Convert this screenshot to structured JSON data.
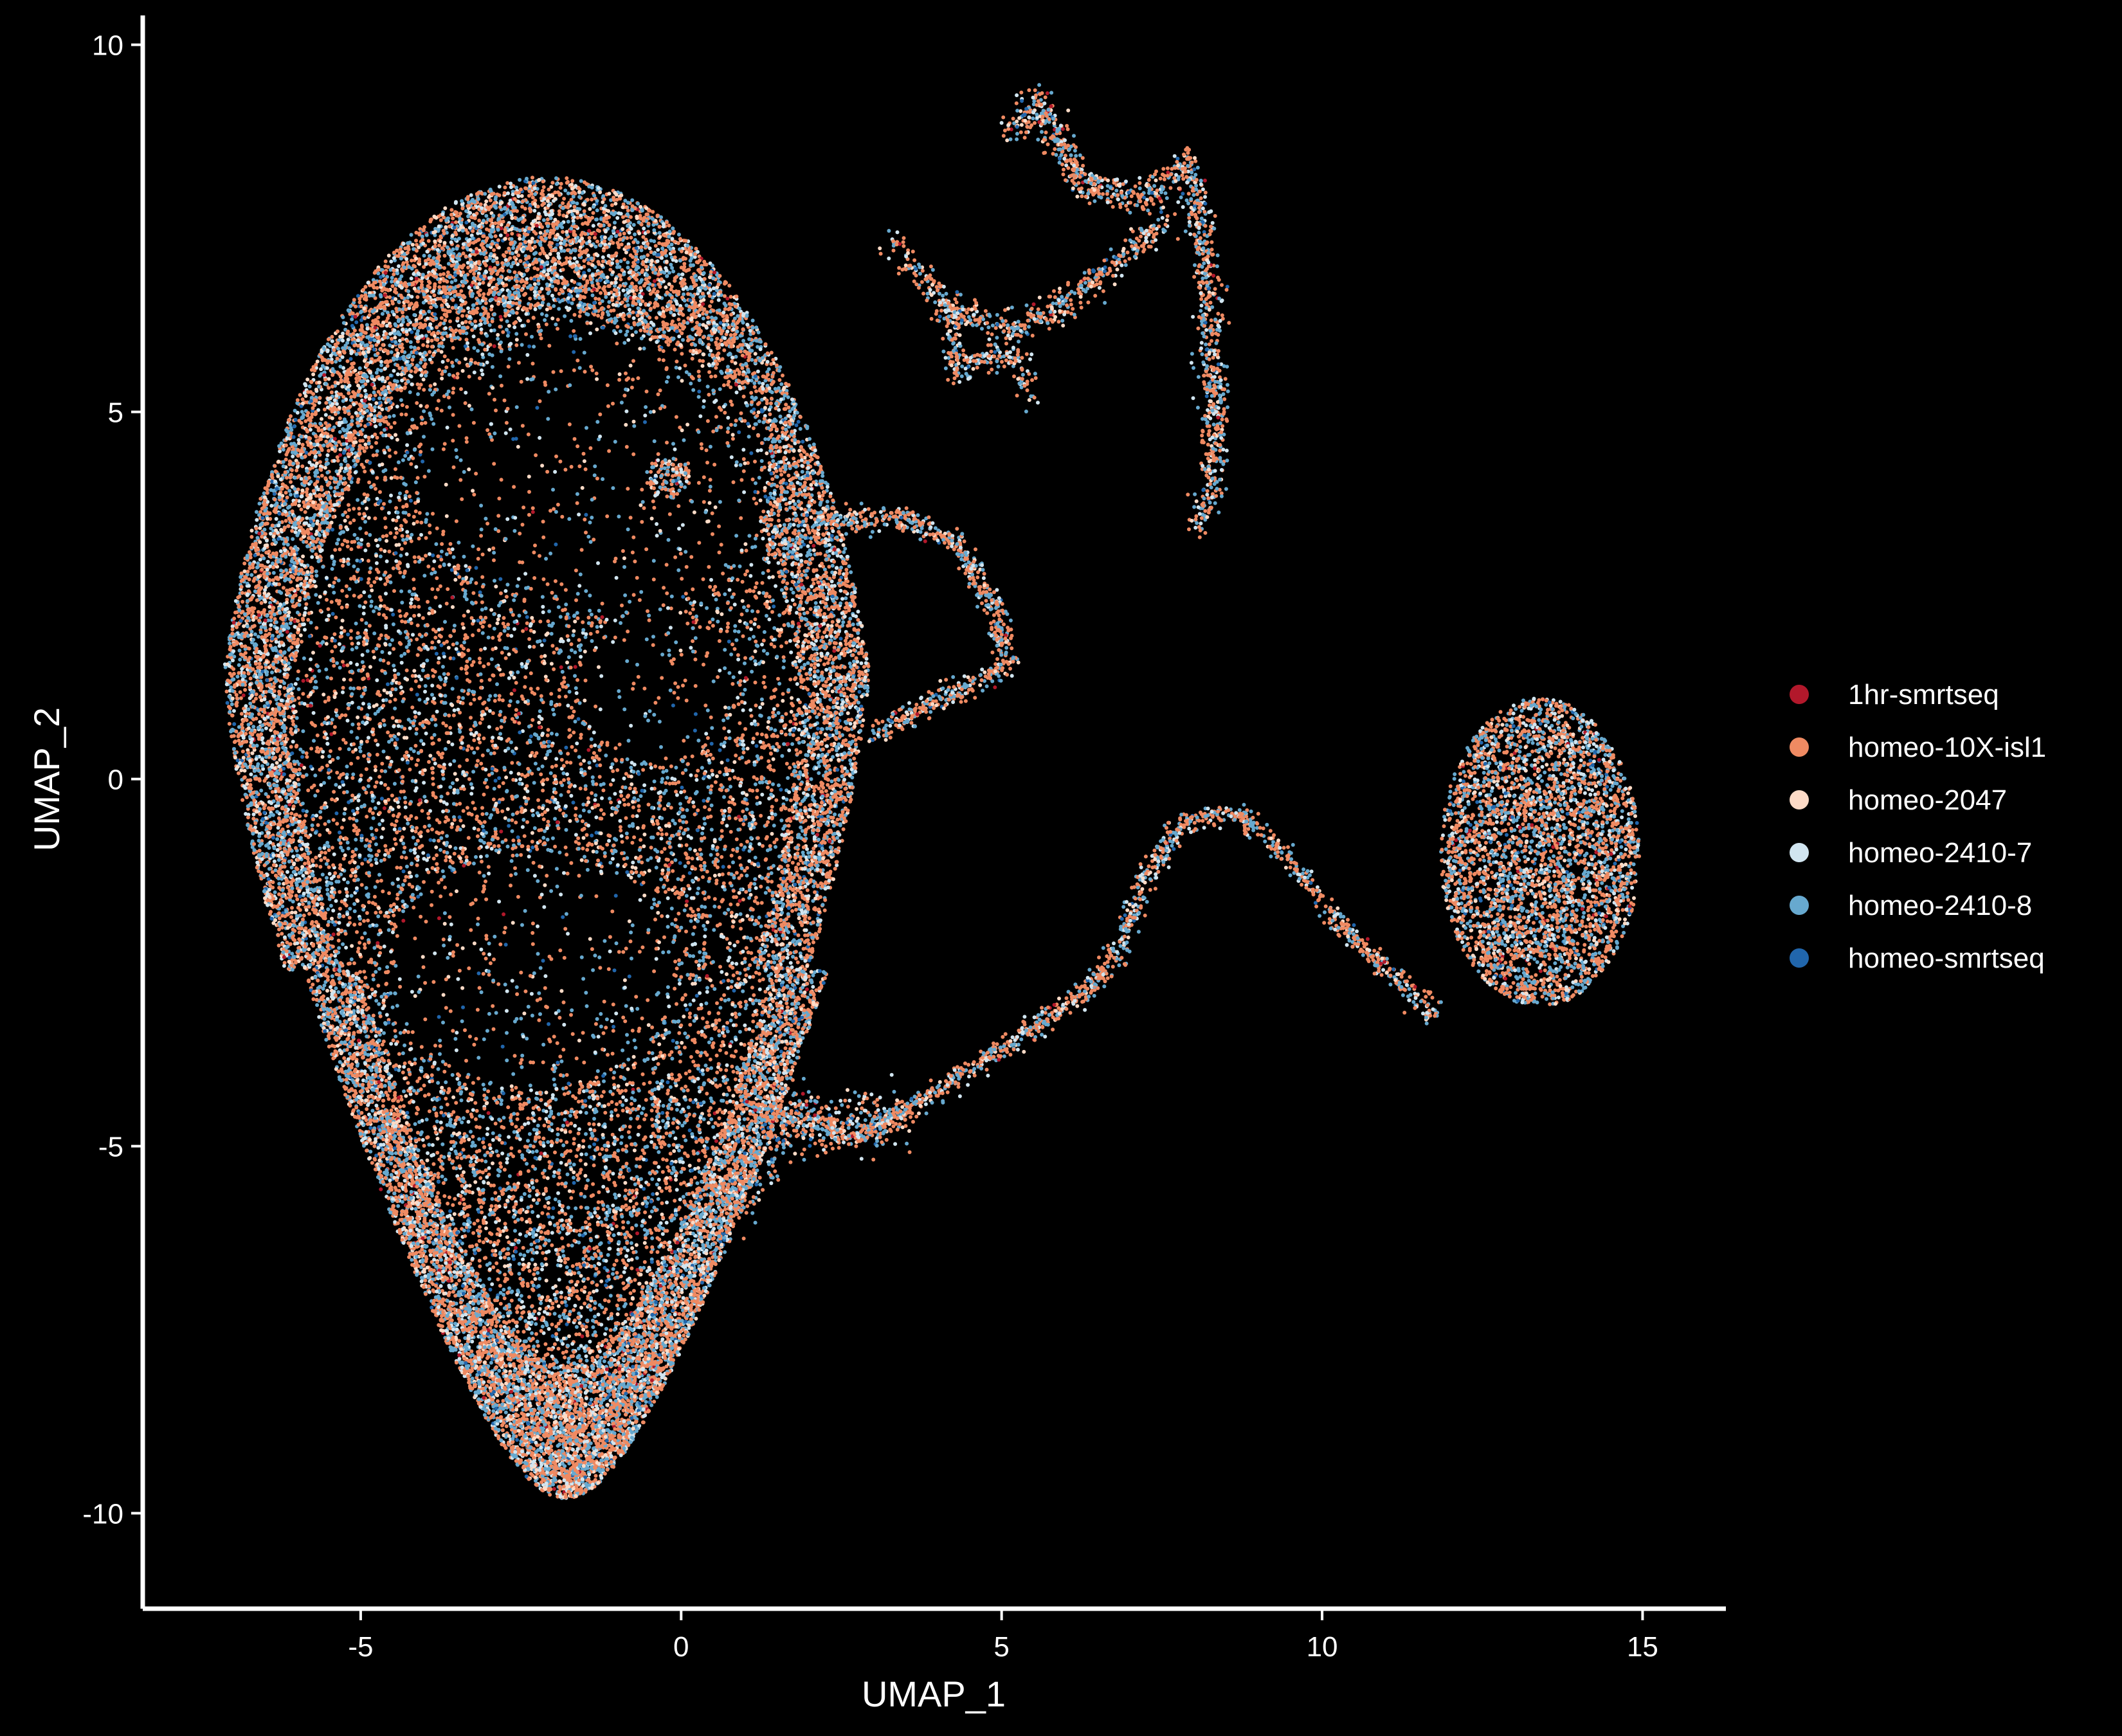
{
  "chart_data": {
    "type": "scatter",
    "title": "",
    "xlabel": "UMAP_1",
    "ylabel": "UMAP_2",
    "xlim": [
      -8.4,
      16.3
    ],
    "ylim": [
      -11.3,
      10.4
    ],
    "x_ticks": [
      -5,
      0,
      5,
      10,
      15
    ],
    "y_ticks": [
      -10,
      -5,
      0,
      5,
      10
    ],
    "x_tick_labels": [
      "-5",
      "0",
      "5",
      "10",
      "15"
    ],
    "y_tick_labels": [
      "-10",
      "-5",
      "0",
      "5",
      "10"
    ],
    "grid": false,
    "background": "#000000",
    "legend_position": "right",
    "series": [
      {
        "name": "1hr-smrtseq",
        "color": "#b2182b",
        "weight": 0.01
      },
      {
        "name": "homeo-10X-isl1",
        "color": "#ef8a62",
        "weight": 0.48
      },
      {
        "name": "homeo-2047",
        "color": "#fddbc7",
        "weight": 0.08
      },
      {
        "name": "homeo-2410-7",
        "color": "#d1e5f0",
        "weight": 0.13
      },
      {
        "name": "homeo-2410-8",
        "color": "#67a9cf",
        "weight": 0.27
      },
      {
        "name": "homeo-smrtseq",
        "color": "#2166ac",
        "weight": 0.03
      }
    ],
    "regions": [
      {
        "name": "main-cluster",
        "shape": "ellipse",
        "cx": -2.1,
        "cy": -0.8,
        "rx": 5.2,
        "ry": 9.0,
        "ring": true,
        "n": 26000
      },
      {
        "name": "hole-upper",
        "shape": "hole",
        "cx": -1.3,
        "cy": 4.2,
        "rx": 2.7,
        "ry": 1.9
      },
      {
        "name": "hole-middle",
        "shape": "hole",
        "cx": -0.4,
        "cy": 1.3,
        "rx": 1.2,
        "ry": 1.0
      },
      {
        "name": "hole-lower",
        "shape": "hole",
        "cx": -2.3,
        "cy": -2.6,
        "rx": 2.2,
        "ry": 1.6
      },
      {
        "name": "right-cluster",
        "shape": "ellipse",
        "cx": 13.4,
        "cy": -1.0,
        "rx": 1.55,
        "ry": 2.1,
        "ring": false,
        "n": 3600
      },
      {
        "name": "top-right-cluster",
        "shape": "path",
        "points": [
          [
            5.1,
            8.8
          ],
          [
            5.6,
            9.2
          ],
          [
            6.3,
            8.1
          ],
          [
            7.2,
            7.9
          ],
          [
            7.9,
            8.4
          ],
          [
            8.2,
            7.0
          ],
          [
            8.3,
            5.5
          ],
          [
            8.3,
            4.0
          ],
          [
            8.1,
            3.5
          ]
        ],
        "spread": 0.22,
        "n": 1100
      },
      {
        "name": "top-mid-branch",
        "shape": "path",
        "points": [
          [
            3.3,
            7.3
          ],
          [
            3.7,
            6.9
          ],
          [
            4.2,
            6.4
          ],
          [
            5.2,
            6.1
          ],
          [
            6.2,
            6.6
          ],
          [
            7.0,
            7.2
          ],
          [
            7.6,
            7.6
          ]
        ],
        "spread": 0.2,
        "n": 500
      },
      {
        "name": "branch-down",
        "shape": "path",
        "points": [
          [
            4.2,
            6.4
          ],
          [
            4.3,
            5.5
          ],
          [
            4.8,
            5.8
          ],
          [
            5.3,
            5.7
          ],
          [
            5.4,
            5.2
          ]
        ],
        "spread": 0.18,
        "n": 220
      },
      {
        "name": "loop-arc",
        "shape": "path",
        "points": [
          [
            2.4,
            3.5
          ],
          [
            3.4,
            3.6
          ],
          [
            4.3,
            3.2
          ],
          [
            4.9,
            2.3
          ],
          [
            5.1,
            1.6
          ],
          [
            4.6,
            1.3
          ],
          [
            3.8,
            1.0
          ],
          [
            3.0,
            0.6
          ]
        ],
        "spread": 0.16,
        "n": 700
      },
      {
        "name": "bridge-lower",
        "shape": "path",
        "points": [
          [
            1.4,
            -4.5
          ],
          [
            2.8,
            -4.9
          ],
          [
            4.6,
            -3.9
          ],
          [
            6.3,
            -2.9
          ],
          [
            6.8,
            -2.4
          ],
          [
            7.2,
            -1.4
          ],
          [
            7.8,
            -0.6
          ],
          [
            8.6,
            -0.45
          ],
          [
            9.3,
            -0.9
          ],
          [
            10.1,
            -1.8
          ],
          [
            11.0,
            -2.6
          ],
          [
            11.8,
            -3.2
          ]
        ],
        "spread": 0.15,
        "n": 1300
      },
      {
        "name": "bridge-fan",
        "shape": "path",
        "points": [
          [
            0.8,
            -5.8
          ],
          [
            1.5,
            -4.6
          ],
          [
            2.5,
            -4.7
          ],
          [
            3.3,
            -4.6
          ]
        ],
        "spread": 0.45,
        "n": 500
      },
      {
        "name": "small-blob",
        "shape": "ellipse",
        "cx": -0.2,
        "cy": 4.1,
        "rx": 0.35,
        "ry": 0.3,
        "ring": false,
        "n": 120
      }
    ]
  }
}
